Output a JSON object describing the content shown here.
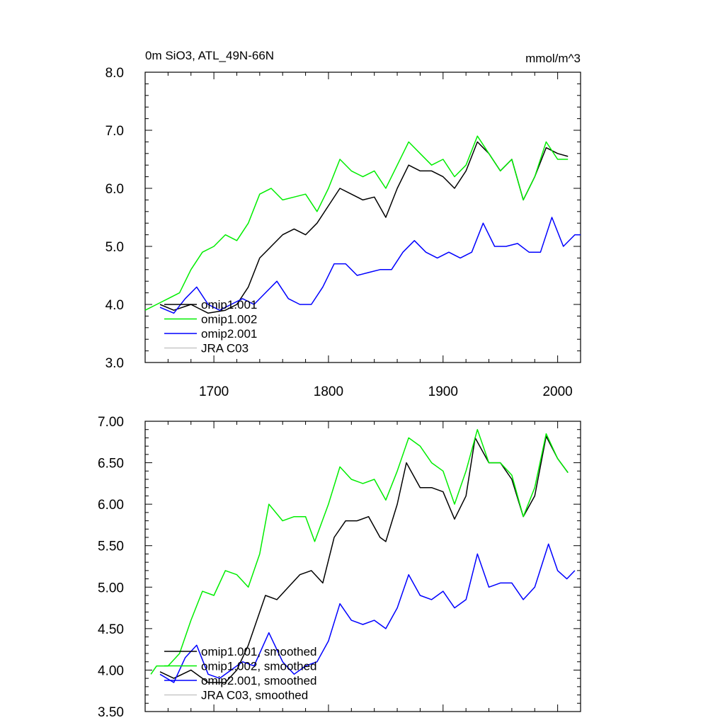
{
  "chart_data": [
    {
      "type": "line",
      "title": "0m SiO3, ATL_49N-66N",
      "units": "mmol/m^3",
      "xlabel": "",
      "ylabel": "",
      "xlim": [
        1640,
        2020
      ],
      "ylim": [
        3.0,
        8.0
      ],
      "xticks": [
        1700,
        1800,
        1900,
        2000
      ],
      "xtick_labels": [
        "1700",
        "1800",
        "1900",
        "2000"
      ],
      "yticks": [
        3.0,
        4.0,
        5.0,
        6.0,
        7.0,
        8.0
      ],
      "ytick_labels": [
        "3.0",
        "4.0",
        "5.0",
        "6.0",
        "7.0",
        "8.0"
      ],
      "legend_position": "bottom-left",
      "series": [
        {
          "name": "omip1.001",
          "color": "#000000",
          "x": [
            1653,
            1665,
            1680,
            1695,
            1710,
            1720,
            1730,
            1740,
            1750,
            1760,
            1770,
            1780,
            1790,
            1800,
            1810,
            1820,
            1830,
            1840,
            1850,
            1860,
            1870,
            1880,
            1890,
            1900,
            1910,
            1920,
            1930,
            1940,
            1950,
            1960,
            1970,
            1980,
            1990,
            2000,
            2009
          ],
          "values": [
            4.0,
            3.9,
            4.0,
            3.85,
            3.9,
            4.0,
            4.3,
            4.8,
            5.0,
            5.2,
            5.3,
            5.2,
            5.4,
            5.7,
            6.0,
            5.9,
            5.8,
            5.85,
            5.5,
            6.0,
            6.4,
            6.3,
            6.3,
            6.2,
            6.0,
            6.3,
            6.8,
            6.6,
            6.3,
            6.5,
            5.8,
            6.2,
            6.7,
            6.6,
            6.55
          ]
        },
        {
          "name": "omip1.002",
          "color": "#00ee00",
          "x": [
            1640,
            1650,
            1660,
            1670,
            1680,
            1690,
            1700,
            1710,
            1720,
            1730,
            1740,
            1750,
            1760,
            1770,
            1780,
            1790,
            1800,
            1810,
            1820,
            1830,
            1840,
            1850,
            1860,
            1870,
            1880,
            1890,
            1900,
            1910,
            1920,
            1930,
            1940,
            1950,
            1960,
            1970,
            1980,
            1990,
            2000,
            2009
          ],
          "values": [
            3.9,
            4.0,
            4.1,
            4.2,
            4.6,
            4.9,
            5.0,
            5.2,
            5.1,
            5.4,
            5.9,
            6.0,
            5.8,
            5.85,
            5.9,
            5.6,
            6.0,
            6.5,
            6.3,
            6.2,
            6.3,
            6.0,
            6.4,
            6.8,
            6.6,
            6.4,
            6.5,
            6.2,
            6.4,
            6.9,
            6.6,
            6.3,
            6.5,
            5.8,
            6.2,
            6.8,
            6.5,
            6.5
          ]
        },
        {
          "name": "omip2.001",
          "color": "#0000ff",
          "x": [
            1653,
            1665,
            1675,
            1685,
            1695,
            1705,
            1715,
            1725,
            1735,
            1745,
            1755,
            1765,
            1775,
            1785,
            1795,
            1805,
            1815,
            1825,
            1835,
            1845,
            1855,
            1865,
            1875,
            1885,
            1895,
            1905,
            1915,
            1925,
            1935,
            1945,
            1955,
            1965,
            1975,
            1985,
            1995,
            2005,
            2015,
            2020
          ],
          "values": [
            3.95,
            3.85,
            4.1,
            4.3,
            4.0,
            3.9,
            4.0,
            4.1,
            4.0,
            4.2,
            4.4,
            4.1,
            4.0,
            4.0,
            4.3,
            4.7,
            4.7,
            4.5,
            4.55,
            4.6,
            4.6,
            4.9,
            5.1,
            4.9,
            4.8,
            4.9,
            4.8,
            4.9,
            5.4,
            5.0,
            5.0,
            5.05,
            4.9,
            4.9,
            5.5,
            5.0,
            5.2,
            5.2
          ]
        },
        {
          "name": "JRA C03",
          "color": "#c8c8c8",
          "x": [],
          "values": []
        }
      ]
    },
    {
      "type": "line",
      "title": "",
      "xlabel": "",
      "ylabel": "",
      "xlim": [
        1640,
        2020
      ],
      "ylim": [
        3.5,
        7.0
      ],
      "xticks": [
        1700,
        1800,
        1900,
        2000
      ],
      "yticks": [
        3.5,
        4.0,
        4.5,
        5.0,
        5.5,
        6.0,
        6.5,
        7.0
      ],
      "ytick_labels": [
        "3.50",
        "4.00",
        "4.50",
        "5.00",
        "5.50",
        "6.00",
        "6.50",
        "7.00"
      ],
      "legend_position": "bottom-left",
      "series": [
        {
          "name": "omip1.001, smoothed",
          "color": "#000000",
          "x": [
            1653,
            1665,
            1680,
            1695,
            1710,
            1720,
            1730,
            1745,
            1755,
            1765,
            1775,
            1785,
            1795,
            1805,
            1815,
            1825,
            1835,
            1845,
            1850,
            1860,
            1868,
            1880,
            1890,
            1900,
            1910,
            1920,
            1928,
            1940,
            1950,
            1960,
            1970,
            1980,
            1990,
            2000,
            2009
          ],
          "values": [
            3.98,
            3.9,
            4.0,
            3.85,
            3.85,
            4.0,
            4.3,
            4.9,
            4.85,
            5.0,
            5.15,
            5.2,
            5.05,
            5.6,
            5.8,
            5.8,
            5.85,
            5.6,
            5.55,
            6.0,
            6.5,
            6.2,
            6.2,
            6.15,
            5.82,
            6.1,
            6.8,
            6.5,
            6.5,
            6.3,
            5.85,
            6.1,
            6.82,
            6.55,
            6.38
          ]
        },
        {
          "name": "omip1.002, smoothed",
          "color": "#00ee00",
          "x": [
            1645,
            1650,
            1660,
            1670,
            1680,
            1690,
            1700,
            1710,
            1720,
            1730,
            1740,
            1748,
            1760,
            1770,
            1780,
            1788,
            1800,
            1810,
            1820,
            1830,
            1840,
            1850,
            1860,
            1870,
            1880,
            1890,
            1900,
            1910,
            1920,
            1930,
            1940,
            1950,
            1960,
            1970,
            1980,
            1990,
            2000,
            2009
          ],
          "values": [
            3.95,
            4.05,
            4.05,
            4.2,
            4.6,
            4.95,
            4.9,
            5.2,
            5.15,
            5.0,
            5.4,
            6.0,
            5.8,
            5.85,
            5.85,
            5.55,
            6.0,
            6.45,
            6.3,
            6.25,
            6.3,
            6.05,
            6.4,
            6.8,
            6.7,
            6.5,
            6.4,
            6.0,
            6.4,
            6.9,
            6.5,
            6.5,
            6.35,
            5.85,
            6.2,
            6.85,
            6.55,
            6.38
          ]
        },
        {
          "name": "omip2.001, smoothed",
          "color": "#0000ff",
          "x": [
            1653,
            1665,
            1675,
            1685,
            1695,
            1705,
            1715,
            1725,
            1735,
            1748,
            1760,
            1770,
            1780,
            1790,
            1800,
            1810,
            1820,
            1830,
            1840,
            1850,
            1860,
            1870,
            1880,
            1890,
            1900,
            1910,
            1920,
            1930,
            1940,
            1950,
            1960,
            1970,
            1980,
            1992,
            2000,
            2008,
            2015
          ],
          "values": [
            3.95,
            3.85,
            4.15,
            4.3,
            3.95,
            3.9,
            4.0,
            4.1,
            4.05,
            4.45,
            4.1,
            3.95,
            4.05,
            4.1,
            4.35,
            4.8,
            4.6,
            4.55,
            4.6,
            4.5,
            4.75,
            5.15,
            4.9,
            4.85,
            4.95,
            4.75,
            4.85,
            5.4,
            5.0,
            5.05,
            5.05,
            4.85,
            5.0,
            5.52,
            5.2,
            5.1,
            5.2
          ]
        },
        {
          "name": "JRA C03, smoothed",
          "color": "#c8c8c8",
          "x": [],
          "values": []
        }
      ]
    }
  ]
}
